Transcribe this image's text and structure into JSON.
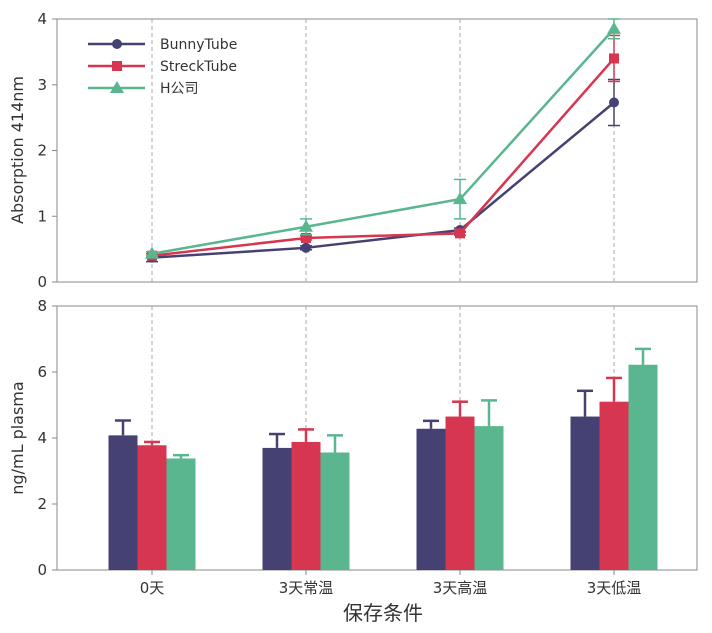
{
  "colors": {
    "series1": "#454273",
    "series2": "#d6364f",
    "series3": "#59b68f"
  },
  "chart_data": [
    {
      "type": "line",
      "categories": [
        "0天",
        "3天常温",
        "3天高温",
        "3天低温"
      ],
      "ylabel": "Absorption 414nm",
      "ylim": [
        0,
        4
      ],
      "yticks": [
        0,
        1,
        2,
        3,
        4
      ],
      "legend_position": "top-left",
      "series": [
        {
          "name": "BunnyTube",
          "values": [
            0.37,
            0.52,
            0.79,
            2.73
          ],
          "errors": [
            0.06,
            0.03,
            0.03,
            0.35
          ]
        },
        {
          "name": "StreckTube",
          "values": [
            0.4,
            0.67,
            0.74,
            3.4
          ],
          "errors": [
            0.03,
            0.03,
            0.03,
            0.35
          ]
        },
        {
          "name": "H公司",
          "values": [
            0.43,
            0.84,
            1.26,
            3.85
          ],
          "errors": [
            0.03,
            0.12,
            0.3,
            0.15
          ]
        }
      ]
    },
    {
      "type": "bar",
      "categories": [
        "0天",
        "3天常温",
        "3天高温",
        "3天低温"
      ],
      "xlabel": "保存条件",
      "ylabel": "ng/mL plasma",
      "ylim": [
        0,
        8
      ],
      "yticks": [
        0,
        2,
        4,
        6,
        8
      ],
      "series": [
        {
          "name": "BunnyTube",
          "values": [
            4.08,
            3.7,
            4.28,
            4.65
          ],
          "errors": [
            0.45,
            0.42,
            0.24,
            0.78
          ]
        },
        {
          "name": "StreckTube",
          "values": [
            3.78,
            3.88,
            4.65,
            5.1
          ],
          "errors": [
            0.1,
            0.38,
            0.45,
            0.72
          ]
        },
        {
          "name": "H公司",
          "values": [
            3.38,
            3.56,
            4.36,
            6.22
          ],
          "errors": [
            0.1,
            0.52,
            0.78,
            0.48
          ]
        }
      ]
    }
  ]
}
